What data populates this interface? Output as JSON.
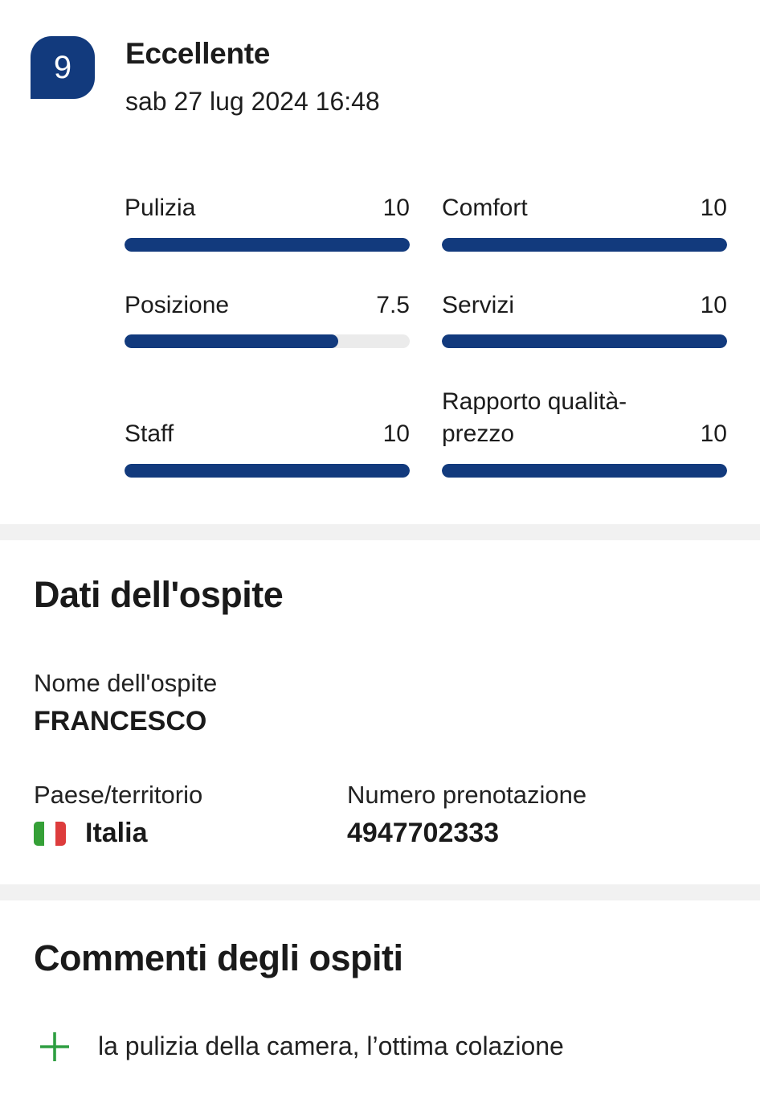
{
  "review": {
    "score": "9",
    "score_label": "Eccellente",
    "date": "sab 27 lug 2024 16:48",
    "ratings": [
      {
        "label": "Pulizia",
        "value": "10",
        "pct": 100
      },
      {
        "label": "Comfort",
        "value": "10",
        "pct": 100
      },
      {
        "label": "Posizione",
        "value": "7.5",
        "pct": 75
      },
      {
        "label": "Servizi",
        "value": "10",
        "pct": 100
      },
      {
        "label": "Staff",
        "value": "10",
        "pct": 100
      },
      {
        "label": "Rapporto qualità-prezzo",
        "value": "10",
        "pct": 100
      }
    ]
  },
  "guest": {
    "heading": "Dati dell'ospite",
    "name_label": "Nome dell'ospite",
    "name_value": "FRANCESCO",
    "country_label": "Paese/territorio",
    "country_value": "Italia",
    "country_flag": "italy-flag",
    "booking_number_label": "Numero prenotazione",
    "booking_number_value": "4947702333"
  },
  "comments": {
    "heading": "Commenti degli ospiti",
    "items": [
      {
        "type": "positive",
        "icon": "plus-icon",
        "text": "la pulizia della camera, l’ottima colazione"
      }
    ]
  },
  "colors": {
    "accent_blue": "#123a7d",
    "bar_track": "#ebebeb",
    "divider": "#f1f1f1",
    "positive_green": "#2e9e41",
    "flag_green": "#35a037",
    "flag_red": "#dd3c3c",
    "text": "#1e1e1e"
  }
}
